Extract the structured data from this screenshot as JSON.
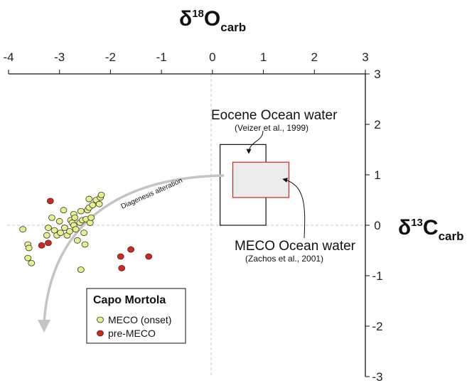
{
  "chart_data": {
    "type": "scatter",
    "x_axis": {
      "label_main": "δ",
      "label_sup": "18",
      "label_base": "O",
      "label_sub": "carb",
      "range": [
        -4,
        3
      ],
      "ticks": [
        "-4",
        "-3",
        "-2",
        "-1",
        "0",
        "1",
        "2",
        "3"
      ],
      "position": "top"
    },
    "y_axis": {
      "label_main": "δ",
      "label_sup": "13",
      "label_base": "C",
      "label_sub": "carb",
      "range": [
        -3,
        3
      ],
      "ticks": [
        "3",
        "2",
        "1",
        "0",
        "-1",
        "-2",
        "-3"
      ],
      "position": "right"
    },
    "grid": false,
    "zero_lines": "dashed",
    "series": [
      {
        "name": "MECO (onset)",
        "color": "#e8f08a",
        "points": [
          [
            -3.72,
            -0.08
          ],
          [
            -3.62,
            -0.38
          ],
          [
            -3.6,
            -0.45
          ],
          [
            -3.62,
            -0.65
          ],
          [
            -3.55,
            -0.75
          ],
          [
            -3.25,
            -0.2
          ],
          [
            -3.22,
            -0.05
          ],
          [
            -3.15,
            0.15
          ],
          [
            -3.1,
            -0.1
          ],
          [
            -3.05,
            -0.2
          ],
          [
            -3.0,
            0.08
          ],
          [
            -2.98,
            -0.15
          ],
          [
            -2.9,
            -0.05
          ],
          [
            -2.92,
            0.3
          ],
          [
            -2.85,
            -0.2
          ],
          [
            -2.8,
            -0.12
          ],
          [
            -2.78,
            0.1
          ],
          [
            -2.75,
            0.05
          ],
          [
            -2.72,
            0.0
          ],
          [
            -2.72,
            0.22
          ],
          [
            -2.7,
            0.15
          ],
          [
            -2.68,
            -0.08
          ],
          [
            -2.65,
            -0.3
          ],
          [
            -2.6,
            0.05
          ],
          [
            -2.58,
            0.28
          ],
          [
            -2.55,
            0.1
          ],
          [
            -2.52,
            -0.15
          ],
          [
            -2.5,
            -0.38
          ],
          [
            -2.48,
            0.12
          ],
          [
            -2.45,
            0.3
          ],
          [
            -2.42,
            0.35
          ],
          [
            -2.4,
            0.05
          ],
          [
            -2.38,
            0.15
          ],
          [
            -2.35,
            0.4
          ],
          [
            -2.28,
            0.5
          ],
          [
            -2.22,
            0.42
          ],
          [
            -2.2,
            0.55
          ],
          [
            -2.18,
            0.6
          ],
          [
            -2.42,
            0.52
          ],
          [
            -2.58,
            -0.88
          ]
        ]
      },
      {
        "name": "pre-MECO",
        "color": "#d8241c",
        "points": [
          [
            -3.18,
            0.48
          ],
          [
            -3.22,
            -0.35
          ],
          [
            -3.35,
            -0.4
          ],
          [
            -1.8,
            -0.62
          ],
          [
            -1.6,
            -0.48
          ],
          [
            -1.78,
            -0.85
          ],
          [
            -1.25,
            -0.62
          ]
        ]
      }
    ],
    "boxes": [
      {
        "name": "Eocene Ocean water",
        "x": [
          0.15,
          1.05
        ],
        "y": [
          0.0,
          1.6
        ],
        "stroke": "#111111",
        "fill": "none"
      },
      {
        "name": "MECO Ocean water",
        "x": [
          0.4,
          1.5
        ],
        "y": [
          0.55,
          1.25
        ],
        "stroke": "#d8241c",
        "fill": "#ececec"
      }
    ],
    "annotations": {
      "eocene_title": "Eocene Ocean water",
      "eocene_ref": "(Veizer et al., 1999)",
      "meco_title": "MECO Ocean water",
      "meco_ref": "(Zachos et al., 2001)",
      "diagenesis": "Diagenesis alteration"
    },
    "legend": {
      "title": "Capo Mortola",
      "items": [
        "MECO (onset)",
        "pre-MECO"
      ],
      "placement": "bottom-left"
    }
  }
}
